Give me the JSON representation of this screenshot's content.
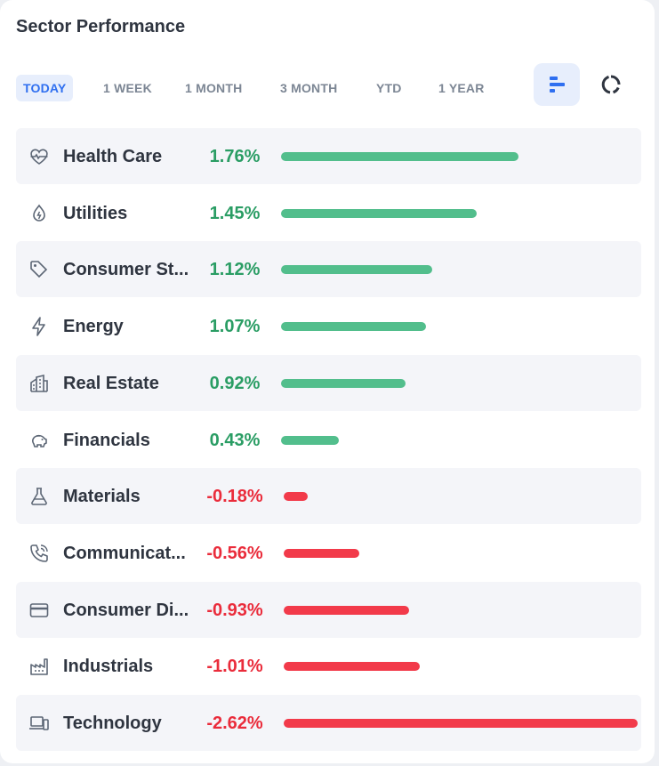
{
  "header": {
    "title": "Sector Performance"
  },
  "tabs": [
    {
      "label": "TODAY",
      "active": true
    },
    {
      "label": "1 WEEK",
      "active": false
    },
    {
      "label": "1 MONTH",
      "active": false
    },
    {
      "label": "3 MONTH",
      "active": false
    },
    {
      "label": "YTD",
      "active": false
    },
    {
      "label": "1 YEAR",
      "active": false
    }
  ],
  "view_toggle": {
    "selected": "bar-chart",
    "options": [
      "bar-chart-icon",
      "donut-chart-icon"
    ]
  },
  "colors": {
    "positive": "#52be8c",
    "negative": "#f23a4a",
    "positive_text": "#2a9d64",
    "negative_text": "#ea2c3b",
    "accent": "#2f6ff0"
  },
  "chart_data": {
    "type": "bar",
    "categories": [
      "Health Care",
      "Utilities",
      "Consumer St...",
      "Energy",
      "Real Estate",
      "Financials",
      "Materials",
      "Communicat...",
      "Consumer Di...",
      "Industrials",
      "Technology"
    ],
    "values": [
      1.76,
      1.45,
      1.12,
      1.07,
      0.92,
      0.43,
      -0.18,
      -0.56,
      -0.93,
      -1.01,
      -2.62
    ],
    "value_labels": [
      "1.76%",
      "1.45%",
      "1.12%",
      "1.07%",
      "0.92%",
      "0.43%",
      "-0.18%",
      "-0.56%",
      "-0.93%",
      "-1.01%",
      "-2.62%"
    ],
    "icons": [
      "heart-pulse-icon",
      "water-drop-icon",
      "tag-icon",
      "lightning-icon",
      "buildings-icon",
      "piggy-bank-icon",
      "flask-icon",
      "phone-icon",
      "credit-card-icon",
      "factory-icon",
      "devices-icon"
    ]
  }
}
